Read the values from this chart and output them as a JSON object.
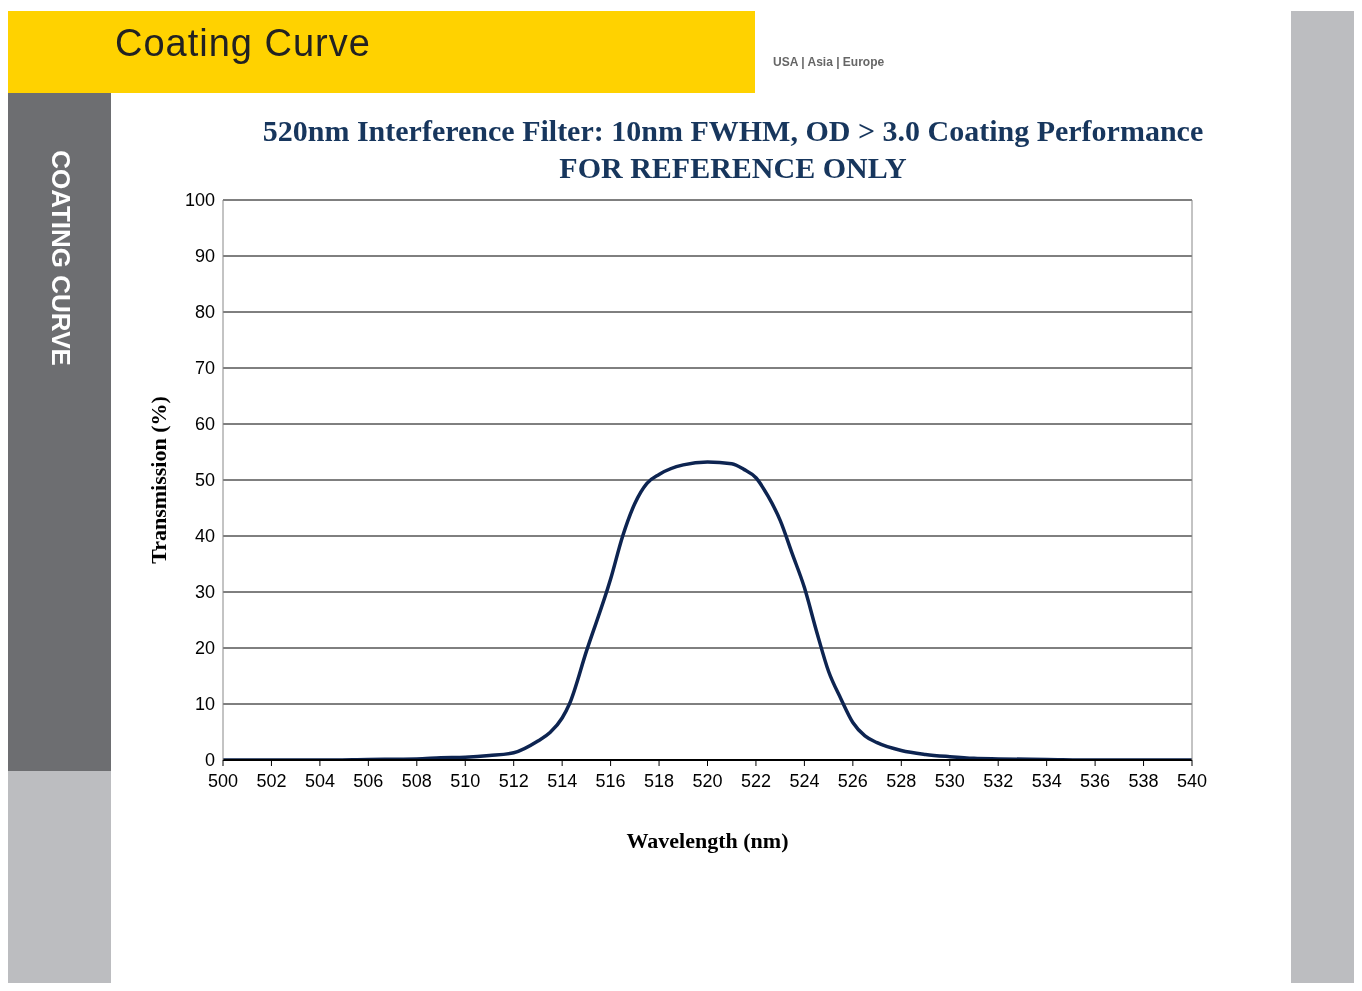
{
  "chart_data": {
    "type": "line",
    "title": "520nm Interference Filter: 10nm FWHM, OD > 3.0 Coating Performance",
    "subtitle": "FOR REFERENCE ONLY",
    "xlabel": "Wavelength (nm)",
    "ylabel": "Transmission (%)",
    "annotations": [
      "Coating Curve",
      "COATING CURVE",
      "USA | Asia | Europe"
    ],
    "x": [
      500,
      504,
      506,
      508,
      509,
      510,
      511,
      512,
      513,
      513.5,
      514,
      514.3,
      515,
      516,
      516.5,
      517,
      517.5,
      518,
      519,
      520,
      521,
      521.5,
      522,
      522.5,
      523,
      523.5,
      524,
      524.5,
      525,
      525.5,
      526,
      526.5,
      527,
      528,
      529,
      530,
      531,
      532,
      534,
      536,
      540
    ],
    "series": [
      {
        "color": "#0d2451",
        "values": [
          0,
          0,
          0.1,
          0.2,
          0.4,
          0.5,
          0.8,
          1.3,
          3.4,
          4.9,
          7.5,
          10,
          19.4,
          32.3,
          40,
          45.8,
          49.4,
          51,
          52.7,
          53.2,
          52.9,
          51.9,
          50.4,
          47.1,
          42.8,
          36.8,
          30.8,
          23,
          15.8,
          11,
          6.7,
          4.3,
          3.1,
          1.7,
          1,
          0.6,
          0.3,
          0.2,
          0.1,
          0,
          0
        ]
      }
    ],
    "xlim": [
      500,
      540
    ],
    "xticks": [
      500,
      502,
      504,
      506,
      508,
      510,
      512,
      514,
      516,
      518,
      520,
      522,
      524,
      526,
      528,
      530,
      532,
      534,
      536,
      538,
      540
    ],
    "ylim": [
      0,
      100
    ],
    "yticks": [
      0,
      10,
      20,
      30,
      40,
      50,
      60,
      70,
      80,
      90,
      100
    ],
    "grid": "y",
    "legend": false,
    "marker": "none",
    "line_style": "solid"
  }
}
